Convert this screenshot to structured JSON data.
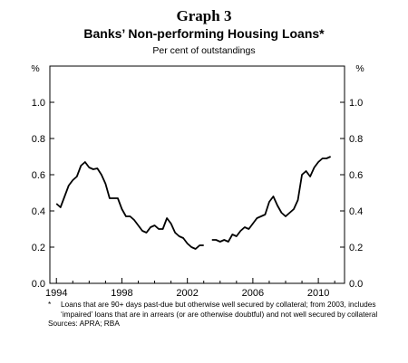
{
  "header": {
    "graph_label": "Graph 3",
    "title": "Banks’ Non-performing Housing Loans*",
    "subtitle": "Per cent of outstandings"
  },
  "footer": {
    "footnote_mark": "*",
    "footnote": "Loans that are 90+ days past-due but otherwise well secured by collateral; from 2003, includes ‘impaired’ loans that are in arrears (or are otherwise doubtful) and not well secured by collateral",
    "sources": "Sources: APRA; RBA"
  },
  "chart_data": {
    "type": "line",
    "title": "Banks’ Non-performing Housing Loans*",
    "subtitle": "Per cent of outstandings",
    "ylabel_left": "%",
    "ylabel_right": "%",
    "xlim": [
      1993.6,
      2011.6
    ],
    "ylim": [
      0,
      1.2
    ],
    "x_ticks": [
      1994,
      1998,
      2002,
      2006,
      2010
    ],
    "y_ticks": [
      0.0,
      0.2,
      0.4,
      0.6,
      0.8,
      1.0
    ],
    "y_tick_labels": [
      "0.0",
      "0.2",
      "0.4",
      "0.6",
      "0.8",
      "1.0"
    ],
    "grid": false,
    "series": [
      {
        "color": "#000000",
        "segments": [
          [
            [
              1994.0,
              0.44
            ],
            [
              1994.25,
              0.42
            ],
            [
              1994.5,
              0.48
            ],
            [
              1994.75,
              0.54
            ],
            [
              1995.0,
              0.57
            ],
            [
              1995.25,
              0.59
            ],
            [
              1995.5,
              0.65
            ],
            [
              1995.75,
              0.67
            ],
            [
              1996.0,
              0.64
            ],
            [
              1996.25,
              0.63
            ],
            [
              1996.5,
              0.635
            ],
            [
              1996.75,
              0.6
            ],
            [
              1997.0,
              0.55
            ],
            [
              1997.25,
              0.47
            ],
            [
              1997.5,
              0.47
            ],
            [
              1997.75,
              0.47
            ],
            [
              1998.0,
              0.41
            ],
            [
              1998.25,
              0.37
            ],
            [
              1998.5,
              0.37
            ],
            [
              1998.75,
              0.35
            ],
            [
              1999.0,
              0.32
            ],
            [
              1999.25,
              0.29
            ],
            [
              1999.5,
              0.28
            ],
            [
              1999.75,
              0.31
            ],
            [
              2000.0,
              0.32
            ],
            [
              2000.25,
              0.3
            ],
            [
              2000.5,
              0.3
            ],
            [
              2000.75,
              0.36
            ],
            [
              2001.0,
              0.33
            ],
            [
              2001.25,
              0.28
            ],
            [
              2001.5,
              0.26
            ],
            [
              2001.75,
              0.25
            ],
            [
              2002.0,
              0.22
            ],
            [
              2002.25,
              0.2
            ],
            [
              2002.5,
              0.19
            ],
            [
              2002.75,
              0.21
            ],
            [
              2003.0,
              0.21
            ]
          ],
          [
            [
              2003.5,
              0.24
            ],
            [
              2003.75,
              0.24
            ],
            [
              2004.0,
              0.23
            ],
            [
              2004.25,
              0.24
            ],
            [
              2004.5,
              0.23
            ],
            [
              2004.75,
              0.27
            ],
            [
              2005.0,
              0.26
            ],
            [
              2005.25,
              0.29
            ],
            [
              2005.5,
              0.31
            ],
            [
              2005.75,
              0.3
            ],
            [
              2006.0,
              0.33
            ],
            [
              2006.25,
              0.36
            ],
            [
              2006.5,
              0.37
            ],
            [
              2006.75,
              0.38
            ],
            [
              2007.0,
              0.45
            ],
            [
              2007.25,
              0.48
            ],
            [
              2007.5,
              0.43
            ],
            [
              2007.75,
              0.39
            ],
            [
              2008.0,
              0.37
            ],
            [
              2008.25,
              0.39
            ],
            [
              2008.5,
              0.41
            ],
            [
              2008.75,
              0.46
            ],
            [
              2009.0,
              0.6
            ],
            [
              2009.25,
              0.62
            ],
            [
              2009.5,
              0.59
            ],
            [
              2009.75,
              0.64
            ],
            [
              2010.0,
              0.67
            ],
            [
              2010.25,
              0.69
            ],
            [
              2010.5,
              0.69
            ],
            [
              2010.75,
              0.7
            ]
          ]
        ]
      }
    ]
  }
}
